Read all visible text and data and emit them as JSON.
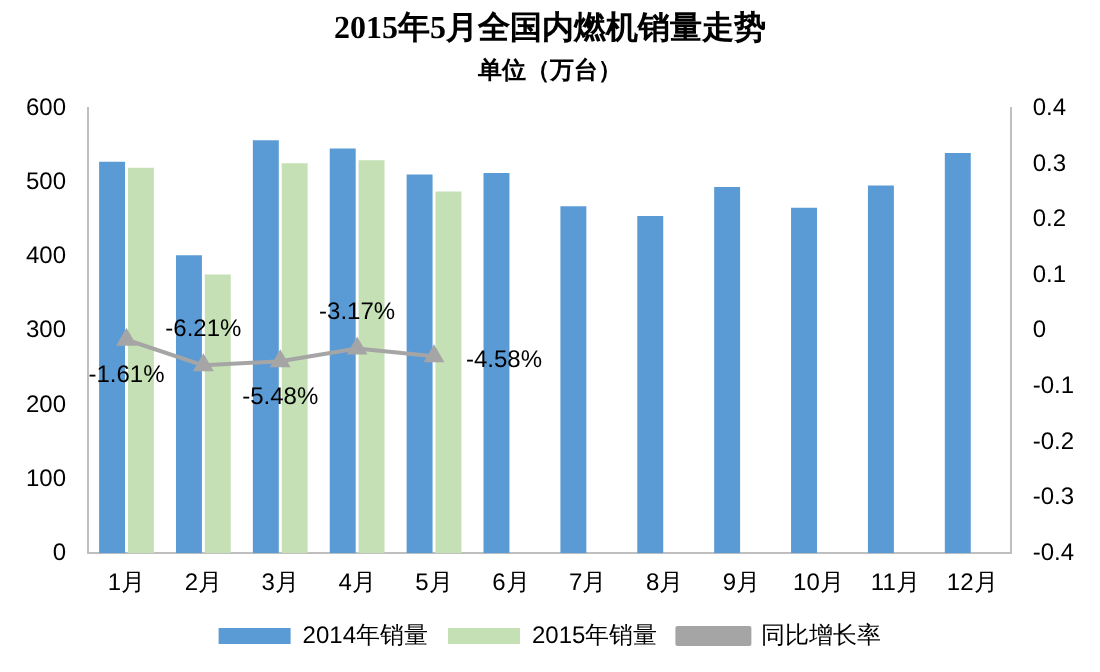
{
  "chart_data": {
    "type": "bar",
    "title": "2015年5月全国内燃机销量走势",
    "subtitle": "单位（万台）",
    "categories": [
      "1月",
      "2月",
      "3月",
      "4月",
      "5月",
      "6月",
      "7月",
      "8月",
      "9月",
      "10月",
      "11月",
      "12月"
    ],
    "series": [
      {
        "name": "2014年销量",
        "color": "#5b9bd5",
        "values": [
          528,
          402,
          557,
          546,
          511,
          513,
          468,
          455,
          494,
          466,
          496,
          540
        ]
      },
      {
        "name": "2015年销量",
        "color": "#c5e0b4",
        "values": [
          520,
          376,
          526,
          530,
          488,
          null,
          null,
          null,
          null,
          null,
          null,
          null
        ]
      },
      {
        "name": "同比增长率",
        "type": "line",
        "axis": "y2",
        "color": "#a5a5a5",
        "marker": "triangle",
        "values": [
          -0.0161,
          -0.0621,
          -0.0548,
          -0.0317,
          -0.0458,
          null,
          null,
          null,
          null,
          null,
          null,
          null
        ],
        "value_labels": [
          "-1.61%",
          "-6.21%",
          "-5.48%",
          "-3.17%",
          "-4.58%",
          null,
          null,
          null,
          null,
          null,
          null,
          null
        ]
      }
    ],
    "ylim": [
      0,
      600
    ],
    "yticks": [
      0,
      100,
      200,
      300,
      400,
      500,
      600
    ],
    "y2lim": [
      -0.4,
      0.4
    ],
    "y2ticks": [
      -0.4,
      -0.3,
      -0.2,
      -0.1,
      0,
      0.1,
      0.2,
      0.3,
      0.4
    ],
    "grid": false,
    "legend": "bottom"
  }
}
